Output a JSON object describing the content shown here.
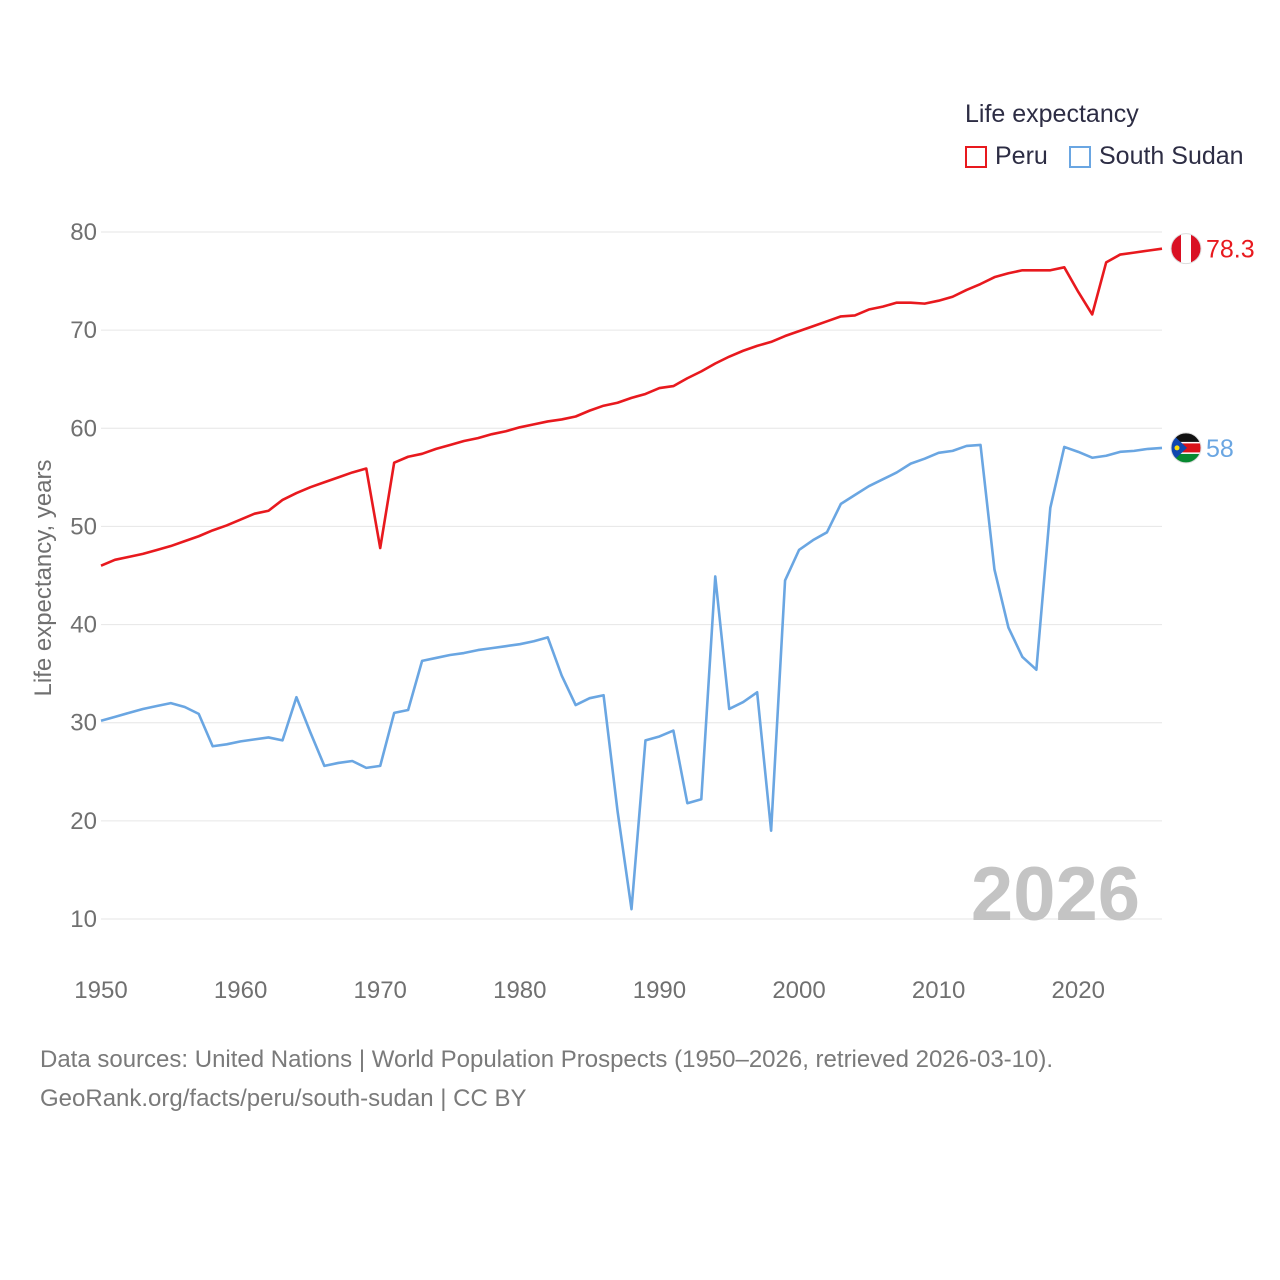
{
  "legend": {
    "title": "Life expectancy",
    "items": [
      {
        "label": "Peru",
        "color": "#e8191e"
      },
      {
        "label": "South Sudan",
        "color": "#6aa6e2"
      }
    ]
  },
  "chart_data": {
    "type": "line",
    "title": "Life expectancy",
    "xlabel": "",
    "ylabel": "Life expectancy, years",
    "xlim": [
      1950,
      2026
    ],
    "ylim": [
      10,
      80
    ],
    "x_ticks": [
      1950,
      1960,
      1970,
      1980,
      1990,
      2000,
      2010,
      2020
    ],
    "y_ticks": [
      10,
      20,
      30,
      40,
      50,
      60,
      70,
      80
    ],
    "grid": true,
    "year_watermark": "2026",
    "x": [
      1950,
      1951,
      1952,
      1953,
      1954,
      1955,
      1956,
      1957,
      1958,
      1959,
      1960,
      1961,
      1962,
      1963,
      1964,
      1965,
      1966,
      1967,
      1968,
      1969,
      1970,
      1971,
      1972,
      1973,
      1974,
      1975,
      1976,
      1977,
      1978,
      1979,
      1980,
      1981,
      1982,
      1983,
      1984,
      1985,
      1986,
      1987,
      1988,
      1989,
      1990,
      1991,
      1992,
      1993,
      1994,
      1995,
      1996,
      1997,
      1998,
      1999,
      2000,
      2001,
      2002,
      2003,
      2004,
      2005,
      2006,
      2007,
      2008,
      2009,
      2010,
      2011,
      2012,
      2013,
      2014,
      2015,
      2016,
      2017,
      2018,
      2019,
      2020,
      2021,
      2022,
      2023,
      2024,
      2025,
      2026
    ],
    "series": [
      {
        "name": "Peru",
        "color": "#e8191e",
        "end_label": "78.3",
        "values": [
          46.0,
          46.6,
          46.9,
          47.2,
          47.6,
          48.0,
          48.5,
          49.0,
          49.6,
          50.1,
          50.7,
          51.3,
          51.6,
          52.7,
          53.4,
          54.0,
          54.5,
          55.0,
          55.5,
          55.9,
          47.8,
          56.5,
          57.1,
          57.4,
          57.9,
          58.3,
          58.7,
          59.0,
          59.4,
          59.7,
          60.1,
          60.4,
          60.7,
          60.9,
          61.2,
          61.8,
          62.3,
          62.6,
          63.1,
          63.5,
          64.1,
          64.3,
          65.1,
          65.8,
          66.6,
          67.3,
          67.9,
          68.4,
          68.8,
          69.4,
          69.9,
          70.4,
          70.9,
          71.4,
          71.5,
          72.1,
          72.4,
          72.8,
          72.8,
          72.7,
          73.0,
          73.4,
          74.1,
          74.7,
          75.4,
          75.8,
          76.1,
          76.1,
          76.1,
          76.4,
          73.9,
          71.6,
          76.9,
          77.7,
          77.9,
          78.1,
          78.3
        ]
      },
      {
        "name": "South Sudan",
        "color": "#6aa6e2",
        "end_label": "58",
        "values": [
          30.2,
          30.6,
          31.0,
          31.4,
          31.7,
          32.0,
          31.6,
          30.9,
          27.6,
          27.8,
          28.1,
          28.3,
          28.5,
          28.2,
          32.6,
          29.0,
          25.6,
          25.9,
          26.1,
          25.4,
          25.6,
          31.0,
          31.3,
          36.3,
          36.6,
          36.9,
          37.1,
          37.4,
          37.6,
          37.8,
          38.0,
          38.3,
          38.7,
          34.8,
          31.8,
          32.5,
          32.8,
          21.0,
          11.0,
          28.2,
          28.6,
          29.2,
          21.8,
          22.2,
          44.9,
          31.4,
          32.1,
          33.1,
          19.0,
          44.5,
          47.6,
          48.6,
          49.4,
          52.3,
          53.2,
          54.1,
          54.8,
          55.5,
          56.4,
          56.9,
          57.5,
          57.7,
          58.2,
          58.3,
          45.6,
          39.7,
          36.7,
          35.4,
          51.9,
          58.1,
          57.6,
          57.0,
          57.2,
          57.6,
          57.7,
          57.9,
          58.0
        ]
      }
    ]
  },
  "footer": {
    "line1": "Data sources: United Nations | World Population Prospects (1950–2026, retrieved 2026-03-10).",
    "line2": "GeoRank.org/facts/peru/south-sudan | CC BY"
  }
}
